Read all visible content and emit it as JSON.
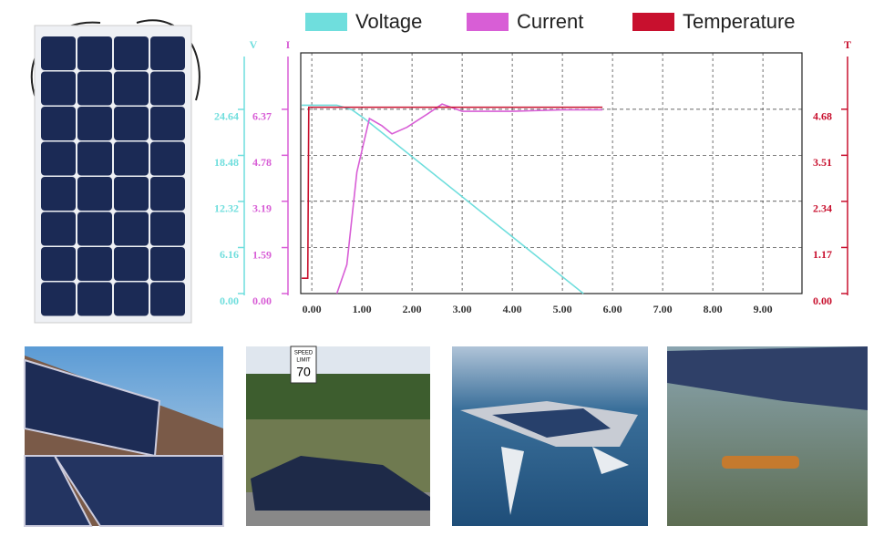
{
  "chart_data": {
    "type": "line",
    "legend": "top",
    "ylabel": "V",
    "y2label": "I",
    "y3label": "T",
    "xlim": [
      -0.22,
      9.78
    ],
    "xticks": [
      {
        "value": 0,
        "label": "0.00"
      },
      {
        "value": 1,
        "label": "1.00"
      },
      {
        "value": 2,
        "label": "2.00"
      },
      {
        "value": 3,
        "label": "3.00"
      },
      {
        "value": 4,
        "label": "4.00"
      },
      {
        "value": 5,
        "label": "5.00"
      },
      {
        "value": 6,
        "label": "6.00"
      },
      {
        "value": 7,
        "label": "7.00"
      },
      {
        "value": 8,
        "label": "8.00"
      },
      {
        "value": 9,
        "label": "9.00"
      }
    ],
    "ylim": [
      0,
      32.2
    ],
    "yticks": [
      {
        "value": 0,
        "label": "0.00"
      },
      6.16,
      12.32,
      18.48,
      24.64
    ],
    "y2lim": [
      0,
      8.32
    ],
    "y2ticks": [
      {
        "value": 0,
        "label": "0.00"
      },
      1.59,
      3.19,
      4.78,
      6.37
    ],
    "y3lim": [
      0,
      6.11
    ],
    "y3ticks": [
      {
        "value": 0,
        "label": "0.00"
      },
      1.17,
      2.34,
      3.51,
      4.68
    ],
    "grid": true,
    "series": [
      {
        "name": "Voltage",
        "color": "#6fdedd",
        "axis": "y",
        "x": [
          -0.2,
          0.5,
          0.8,
          1.05,
          5.42
        ],
        "values": [
          25.2,
          25.2,
          24.6,
          23.4,
          0
        ]
      },
      {
        "name": "Current",
        "color": "#d85ed6",
        "axis": "y2",
        "x": [
          0.5,
          0.7,
          0.9,
          1.15,
          1.4,
          1.6,
          1.9,
          2.3,
          2.6,
          3.0,
          4.0,
          5.0,
          5.8
        ],
        "values": [
          0,
          1.0,
          4.2,
          6.05,
          5.8,
          5.52,
          5.75,
          6.2,
          6.55,
          6.3,
          6.3,
          6.35,
          6.35
        ]
      },
      {
        "name": "Temperature",
        "color": "#c8102e",
        "axis": "y3",
        "x": [
          -0.2,
          -0.08,
          -0.06,
          1.0,
          3.0,
          5.8
        ],
        "values": [
          0.39,
          0.39,
          4.73,
          4.73,
          4.73,
          4.73
        ]
      }
    ]
  },
  "photos": {
    "sign": [
      "SPEED",
      "LIMIT",
      "70"
    ]
  }
}
